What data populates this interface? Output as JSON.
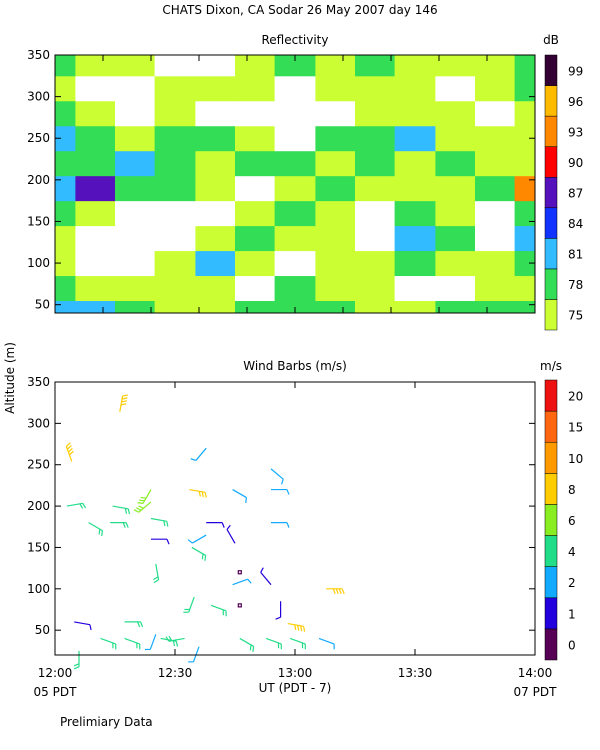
{
  "figure": {
    "title": "CHATS Dixon, CA  Sodar  26 May 2007  day 146",
    "y_axis_label": "Altitude (m)",
    "x_axis_label": "UT  (PDT - 7)",
    "x_start_label": "05 PDT",
    "x_end_label": "07 PDT",
    "footnote": "Prelimiary Data"
  },
  "chart_data": [
    {
      "type": "contour",
      "title": "Reflectivity",
      "colorbar_label": "dB",
      "xlim": [
        12,
        14
      ],
      "xticks": [
        12,
        12.2,
        12.4,
        12.6,
        12.8,
        13,
        13.2,
        13.4,
        13.6,
        13.8,
        14
      ],
      "xtick_labels": false,
      "ylim": [
        40,
        350
      ],
      "yticks": [
        50,
        100,
        150,
        200,
        250,
        300,
        350
      ],
      "levels": [
        75,
        78,
        81,
        84,
        87,
        90,
        93,
        96,
        99
      ],
      "colors": [
        "#ccff33",
        "#33dd55",
        "#33bbff",
        "#1133ff",
        "#5511bb",
        "#ff0000",
        "#ff8800",
        "#ffbb00",
        "#330033"
      ],
      "x": [
        12.0,
        12.17,
        12.33,
        12.5,
        12.67,
        12.83,
        13.0,
        13.17,
        13.33,
        13.5,
        13.67,
        13.83,
        14.0
      ],
      "y": [
        40,
        70,
        100,
        130,
        160,
        190,
        220,
        250,
        280,
        310,
        340
      ],
      "z": [
        [
          82,
          82,
          79,
          76,
          76,
          79,
          79,
          79,
          76,
          76,
          79,
          79,
          79
        ],
        [
          79,
          76,
          76,
          76,
          76,
          72,
          79,
          76,
          76,
          72,
          72,
          76,
          76
        ],
        [
          76,
          72,
          72,
          76,
          82,
          76,
          72,
          76,
          76,
          79,
          76,
          76,
          79
        ],
        [
          76,
          72,
          72,
          72,
          76,
          79,
          76,
          76,
          72,
          82,
          79,
          72,
          82
        ],
        [
          79,
          76,
          72,
          72,
          72,
          76,
          79,
          76,
          72,
          79,
          76,
          72,
          79
        ],
        [
          82,
          87,
          79,
          79,
          76,
          72,
          76,
          79,
          76,
          76,
          76,
          79,
          93
        ],
        [
          79,
          79,
          82,
          79,
          76,
          79,
          79,
          76,
          79,
          76,
          79,
          76,
          76
        ],
        [
          82,
          79,
          76,
          79,
          79,
          76,
          72,
          79,
          79,
          82,
          76,
          76,
          76
        ],
        [
          79,
          76,
          72,
          76,
          72,
          72,
          72,
          72,
          76,
          76,
          76,
          72,
          76
        ],
        [
          76,
          72,
          72,
          76,
          76,
          76,
          72,
          76,
          76,
          76,
          72,
          76,
          79
        ],
        [
          79,
          76,
          76,
          72,
          72,
          76,
          79,
          76,
          79,
          76,
          76,
          76,
          79
        ]
      ]
    },
    {
      "type": "barbs",
      "title": "Wind Barbs (m/s)",
      "colorbar_label": "m/s",
      "xlim": [
        12,
        14
      ],
      "xticks": [
        {
          "value": 12,
          "label": "12:00"
        },
        {
          "value": 12.5,
          "label": "12:30"
        },
        {
          "value": 13,
          "label": "13:00"
        },
        {
          "value": 13.5,
          "label": "13:30"
        },
        {
          "value": 14,
          "label": "14:00"
        }
      ],
      "ylim": [
        20,
        350
      ],
      "yticks": [
        50,
        100,
        150,
        200,
        250,
        300,
        350
      ],
      "levels": [
        0,
        1,
        2,
        4,
        6,
        8,
        10,
        15,
        20
      ],
      "colors": [
        "#550055",
        "#2200dd",
        "#11aaff",
        "#22dd88",
        "#88ee22",
        "#ffcc00",
        "#ff9900",
        "#ff6611",
        "#ee1111"
      ],
      "x": [
        12.07,
        12.27,
        12.05,
        12.14,
        12.23,
        12.24,
        12.4,
        12.4,
        12.4,
        12.4,
        12.42,
        12.56,
        12.57,
        12.63,
        12.63,
        12.63,
        12.58,
        12.65,
        12.74,
        12.75,
        12.77,
        12.74,
        12.77,
        12.9,
        12.9,
        12.9,
        12.9,
        12.94,
        12.97,
        13.13,
        12.08,
        12.29,
        12.29,
        12.19,
        12.44,
        12.42,
        12.54,
        12.6,
        12.77,
        12.88,
        12.98,
        13.1,
        12.1
      ],
      "altitude": [
        254,
        314,
        200,
        180,
        180,
        200,
        220,
        205,
        185,
        160,
        130,
        220,
        150,
        270,
        180,
        165,
        90,
        80,
        220,
        155,
        120,
        105,
        80,
        245,
        220,
        180,
        105,
        85,
        58,
        100,
        60,
        60,
        40,
        40,
        40,
        45,
        40,
        30,
        40,
        40,
        40,
        40,
        25
      ],
      "speed": [
        9,
        9,
        5,
        5,
        5,
        5,
        7,
        7,
        4,
        1,
        5,
        8,
        4,
        3,
        1,
        3,
        5,
        5,
        3,
        1,
        0.5,
        3,
        0.5,
        3,
        3,
        3,
        1.5,
        1.5,
        9,
        9,
        1.5,
        4,
        4,
        4,
        4,
        3,
        5,
        3,
        4,
        4,
        5,
        3,
        4
      ],
      "direction": [
        340,
        10,
        80,
        120,
        90,
        100,
        210,
        230,
        100,
        90,
        170,
        100,
        120,
        220,
        90,
        240,
        200,
        110,
        120,
        330,
        0,
        70,
        0,
        130,
        90,
        90,
        320,
        180,
        100,
        90,
        100,
        90,
        110,
        110,
        100,
        200,
        260,
        200,
        120,
        110,
        110,
        110,
        180
      ]
    }
  ]
}
